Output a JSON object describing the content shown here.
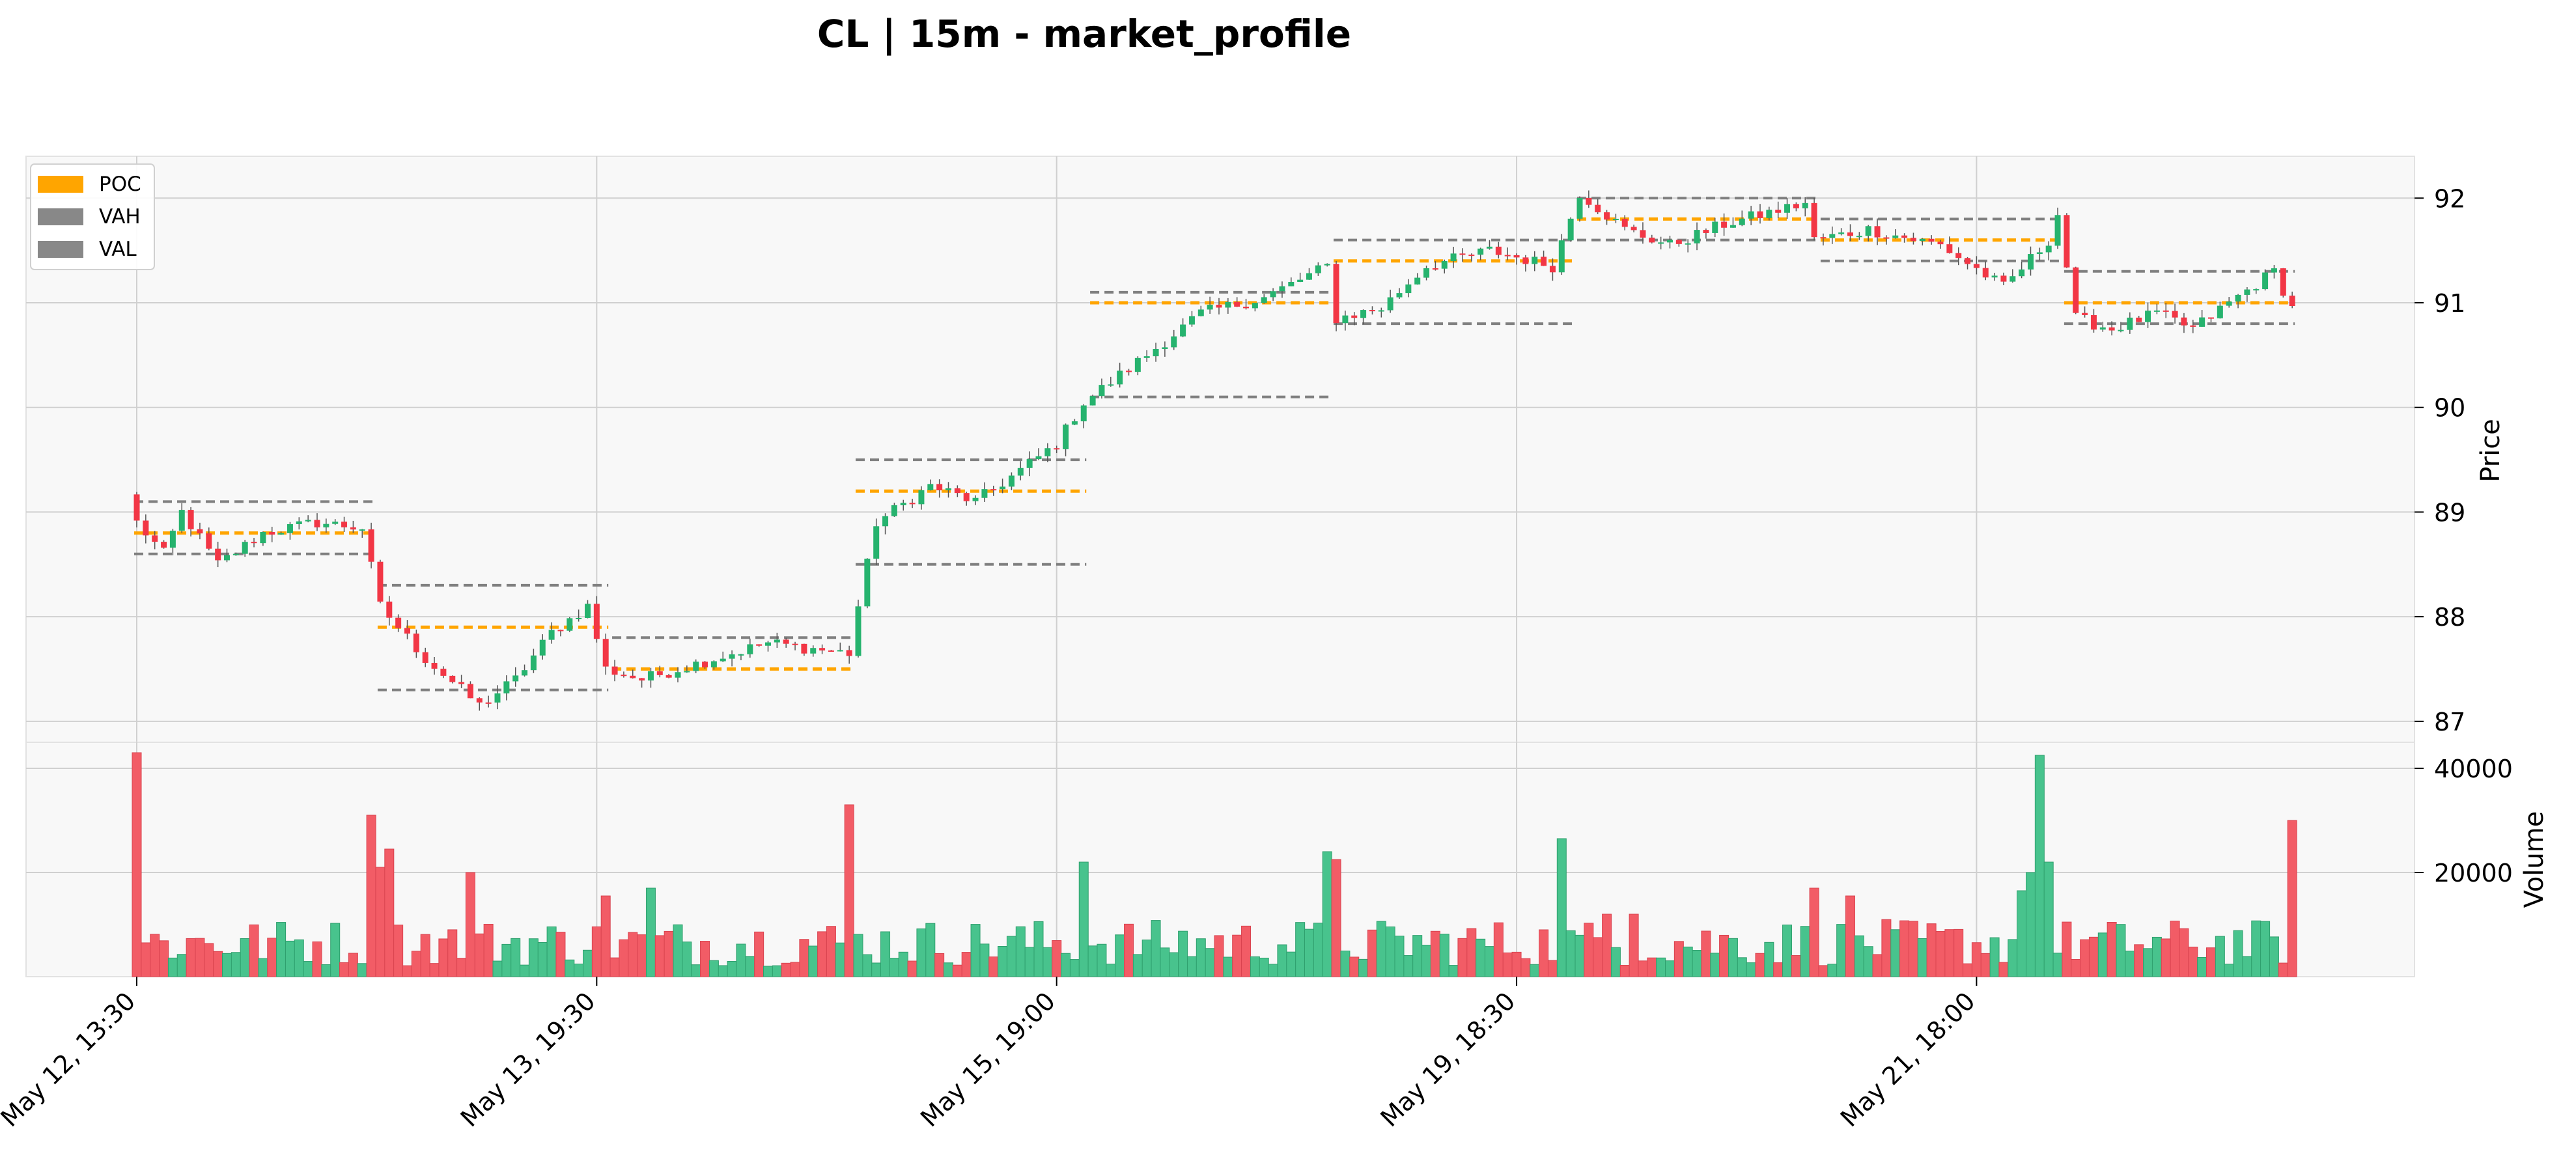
{
  "title": "CL | 15m - market_profile",
  "colors": {
    "up": "#26b36e",
    "down": "#f23645",
    "up_volume": "#48c38d",
    "down_volume": "#f25c66",
    "poc": "#ffa500",
    "va": "#808080",
    "panel_bg": "#f8f8f8",
    "grid": "#d0d0d0"
  },
  "legend": {
    "placement": "top-left",
    "items": [
      {
        "label": "POC",
        "color": "#ffa500"
      },
      {
        "label": "VAH",
        "color": "#888888"
      },
      {
        "label": "VAL",
        "color": "#888888"
      }
    ]
  },
  "chart_data": {
    "type": "candlestick",
    "interval": "15m",
    "bar_count": 240,
    "price_axis": {
      "label": "Price",
      "ticks": [
        "92",
        "91",
        "90",
        "89",
        "88",
        "87"
      ],
      "range": [
        86.8,
        92.4
      ],
      "side": "right"
    },
    "volume_axis": {
      "label": "Volume",
      "ticks": [
        "40000",
        "20000"
      ],
      "range": [
        0,
        45000
      ],
      "side": "right"
    },
    "x_ticks": [
      {
        "label": "May 12, 13:30",
        "bar": 0
      },
      {
        "label": "May 13, 19:30",
        "bar": 51
      },
      {
        "label": "May 15, 19:00",
        "bar": 102
      },
      {
        "label": "May 19, 18:30",
        "bar": 153
      },
      {
        "label": "May 21, 18:00",
        "bar": 204
      }
    ],
    "price_path_keypoints": [
      [
        0,
        88.9
      ],
      [
        3,
        88.6
      ],
      [
        5,
        89.0
      ],
      [
        9,
        88.5
      ],
      [
        14,
        88.8
      ],
      [
        20,
        88.9
      ],
      [
        25,
        88.85
      ],
      [
        27,
        88.1
      ],
      [
        32,
        87.6
      ],
      [
        38,
        87.15
      ],
      [
        42,
        87.4
      ],
      [
        46,
        87.85
      ],
      [
        50,
        88.1
      ],
      [
        52,
        87.5
      ],
      [
        56,
        87.4
      ],
      [
        62,
        87.55
      ],
      [
        70,
        87.75
      ],
      [
        79,
        87.65
      ],
      [
        80,
        88.1
      ],
      [
        82,
        88.9
      ],
      [
        88,
        89.25
      ],
      [
        93,
        89.1
      ],
      [
        98,
        89.4
      ],
      [
        102,
        89.65
      ],
      [
        105,
        90.05
      ],
      [
        112,
        90.5
      ],
      [
        118,
        90.9
      ],
      [
        125,
        91.05
      ],
      [
        132,
        91.35
      ],
      [
        133,
        90.85
      ],
      [
        138,
        90.95
      ],
      [
        143,
        91.35
      ],
      [
        150,
        91.5
      ],
      [
        157,
        91.35
      ],
      [
        160,
        92.05
      ],
      [
        165,
        91.7
      ],
      [
        170,
        91.55
      ],
      [
        176,
        91.75
      ],
      [
        185,
        91.95
      ],
      [
        186,
        91.6
      ],
      [
        192,
        91.7
      ],
      [
        200,
        91.55
      ],
      [
        207,
        91.15
      ],
      [
        212,
        91.6
      ],
      [
        213,
        91.85
      ],
      [
        215,
        90.85
      ],
      [
        219,
        90.75
      ],
      [
        224,
        90.9
      ],
      [
        228,
        90.75
      ],
      [
        232,
        91.0
      ],
      [
        237,
        91.3
      ],
      [
        239,
        90.95
      ]
    ],
    "volume_profile_notes": "low baseline with spikes",
    "volume_spikes": [
      {
        "bar": 0,
        "value": 43000
      },
      {
        "bar": 26,
        "value": 31000
      },
      {
        "bar": 27,
        "value": 21000
      },
      {
        "bar": 28,
        "value": 24500
      },
      {
        "bar": 37,
        "value": 20000
      },
      {
        "bar": 52,
        "value": 15500
      },
      {
        "bar": 57,
        "value": 17000
      },
      {
        "bar": 79,
        "value": 33000
      },
      {
        "bar": 105,
        "value": 22000
      },
      {
        "bar": 132,
        "value": 24000
      },
      {
        "bar": 133,
        "value": 22500
      },
      {
        "bar": 158,
        "value": 26500
      },
      {
        "bar": 163,
        "value": 12000
      },
      {
        "bar": 166,
        "value": 12000
      },
      {
        "bar": 186,
        "value": 17000
      },
      {
        "bar": 190,
        "value": 15500
      },
      {
        "bar": 209,
        "value": 16500
      },
      {
        "bar": 210,
        "value": 20000
      },
      {
        "bar": 211,
        "value": 42500
      },
      {
        "bar": 212,
        "value": 22000
      },
      {
        "bar": 239,
        "value": 30000
      }
    ],
    "profiles": [
      {
        "start": 0,
        "end": 26,
        "poc": 88.8,
        "vah": 89.1,
        "val": 88.6
      },
      {
        "start": 27,
        "end": 52,
        "poc": 87.9,
        "vah": 88.3,
        "val": 87.3
      },
      {
        "start": 53,
        "end": 79,
        "poc": 87.5,
        "vah": 87.8,
        "val": 87.5
      },
      {
        "start": 80,
        "end": 105,
        "poc": 89.2,
        "vah": 89.5,
        "val": 88.5
      },
      {
        "start": 106,
        "end": 132,
        "poc": 91.0,
        "vah": 91.1,
        "val": 90.1
      },
      {
        "start": 133,
        "end": 159,
        "poc": 91.4,
        "vah": 91.6,
        "val": 90.8
      },
      {
        "start": 160,
        "end": 186,
        "poc": 91.8,
        "vah": 92.0,
        "val": 91.6
      },
      {
        "start": 187,
        "end": 213,
        "poc": 91.6,
        "vah": 91.8,
        "val": 91.4
      },
      {
        "start": 214,
        "end": 239,
        "poc": 91.0,
        "vah": 91.3,
        "val": 90.8
      }
    ]
  }
}
